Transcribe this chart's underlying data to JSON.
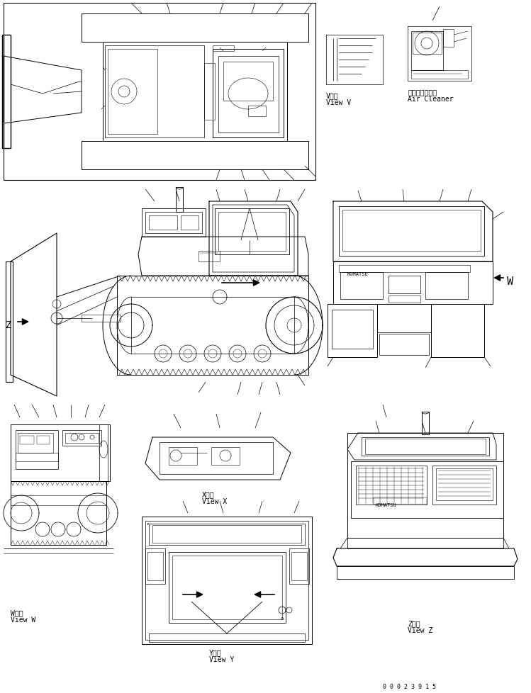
{
  "bg_color": "#ffffff",
  "line_color": "#000000",
  "fig_width": 7.49,
  "fig_height": 9.79,
  "dpi": 100,
  "labels": {
    "view_v_kanji": "V　視",
    "view_v_en": "View V",
    "air_cleaner_kanji": "エアークリーナ",
    "air_cleaner_en": "Air Cleaner",
    "view_w_kanji": "W　視",
    "view_w_en": "View W",
    "view_x_kanji": "X　視",
    "view_x_en": "View X",
    "view_y_kanji": "Y　視",
    "view_y_en": "View Y",
    "view_z_kanji": "Z　視",
    "view_z_en": "View Z",
    "W_label": "W",
    "Z_label": "Z",
    "doc_number": "0 0 0 2 3 9 1 5",
    "komatsu": "KOMATSU"
  },
  "font_sizes": {
    "view_label": 7,
    "big_letter": 11,
    "doc_number": 6,
    "komatsu": 5
  }
}
